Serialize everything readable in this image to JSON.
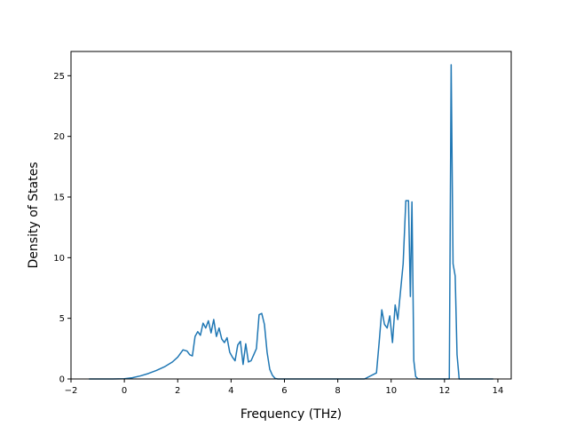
{
  "chart_data": {
    "type": "line",
    "title": "",
    "xlabel": "Frequency (THz)",
    "ylabel": "Density of States",
    "xlim": [
      -2,
      14.5
    ],
    "ylim": [
      0,
      27
    ],
    "xticks": [
      -2,
      0,
      2,
      4,
      6,
      8,
      10,
      12,
      14
    ],
    "yticks": [
      0,
      5,
      10,
      15,
      20,
      25
    ],
    "grid": false,
    "legend": "none",
    "series": [
      {
        "color": "#1f77b4",
        "x": [
          -1.3,
          -0.5,
          0.0,
          0.3,
          0.6,
          0.9,
          1.2,
          1.5,
          1.8,
          2.0,
          2.2,
          2.35,
          2.45,
          2.55,
          2.65,
          2.75,
          2.85,
          2.95,
          3.05,
          3.15,
          3.25,
          3.35,
          3.45,
          3.55,
          3.65,
          3.75,
          3.85,
          3.95,
          4.05,
          4.15,
          4.25,
          4.35,
          4.45,
          4.55,
          4.65,
          4.75,
          4.85,
          4.95,
          5.05,
          5.15,
          5.25,
          5.35,
          5.45,
          5.55,
          5.65,
          5.75,
          5.85,
          5.95,
          6.05,
          6.15,
          6.3,
          7.0,
          8.0,
          9.0,
          9.45,
          9.55,
          9.65,
          9.75,
          9.85,
          9.95,
          10.05,
          10.15,
          10.25,
          10.35,
          10.45,
          10.55,
          10.65,
          10.72,
          10.78,
          10.85,
          10.92,
          11.0,
          11.1,
          11.5,
          12.0,
          12.18,
          12.25,
          12.32,
          12.4,
          12.47,
          12.55,
          13.0,
          13.8
        ],
        "y": [
          0,
          0,
          0.02,
          0.1,
          0.25,
          0.45,
          0.7,
          1.0,
          1.4,
          1.8,
          2.4,
          2.3,
          2.0,
          1.9,
          3.5,
          3.9,
          3.6,
          4.6,
          4.2,
          4.8,
          3.8,
          4.9,
          3.5,
          4.2,
          3.3,
          3.0,
          3.4,
          2.2,
          1.8,
          1.5,
          2.8,
          3.1,
          1.2,
          2.9,
          1.4,
          1.5,
          2.0,
          2.5,
          5.3,
          5.4,
          4.5,
          2.2,
          0.8,
          0.3,
          0.05,
          0,
          0,
          0,
          0,
          0,
          0,
          0,
          0,
          0,
          0.5,
          3.0,
          5.7,
          4.5,
          4.2,
          5.2,
          3.0,
          6.1,
          4.9,
          7.2,
          9.5,
          14.7,
          14.7,
          6.8,
          14.6,
          1.5,
          0.2,
          0.02,
          0,
          0,
          0,
          0,
          25.9,
          9.5,
          8.5,
          2.0,
          0,
          0,
          0
        ]
      }
    ]
  }
}
